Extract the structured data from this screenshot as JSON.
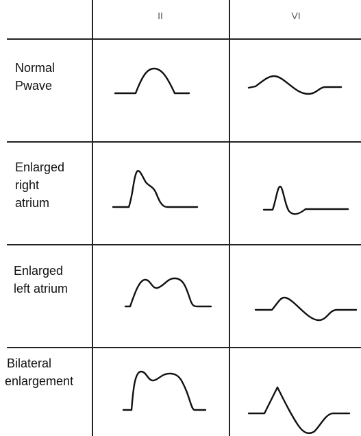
{
  "table": {
    "columns": [
      "II",
      "VI"
    ],
    "rows": [
      {
        "label": [
          "Normal",
          "Pwave"
        ]
      },
      {
        "label": [
          "Enlarged",
          "right",
          "atrium"
        ]
      },
      {
        "label": [
          "Enlarged",
          "left atrium"
        ]
      },
      {
        "label": [
          "Bilateral",
          "enlargement"
        ]
      }
    ]
  }
}
